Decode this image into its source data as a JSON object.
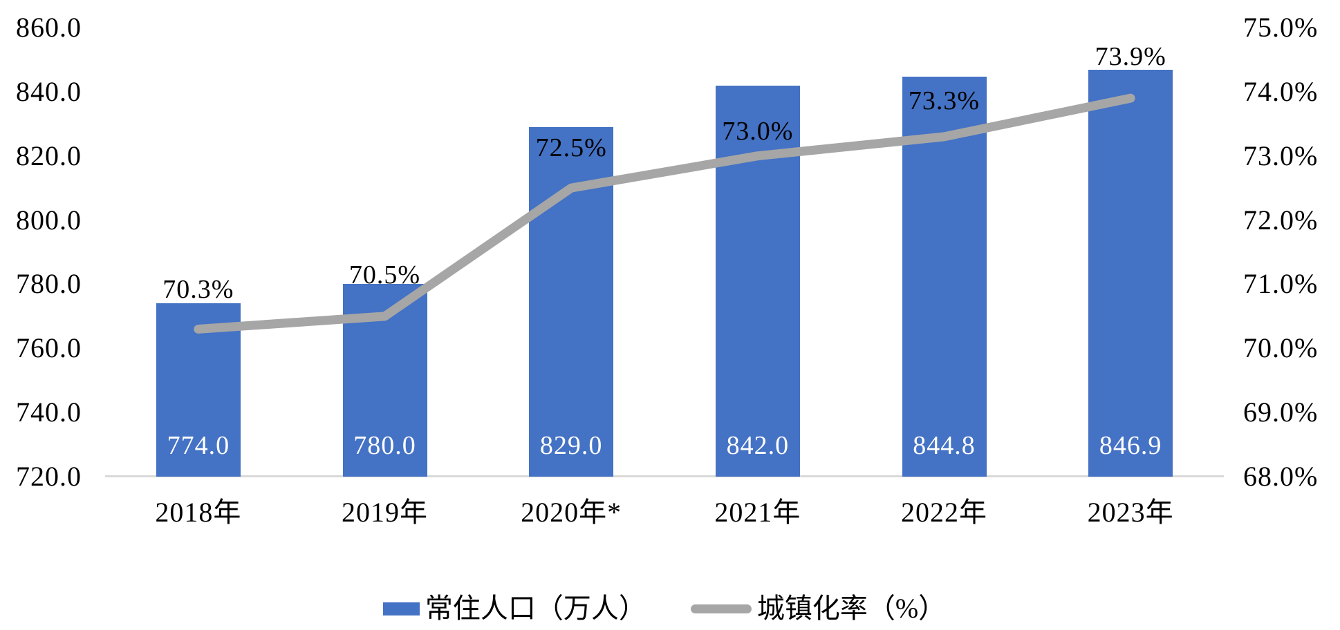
{
  "chart_data": {
    "type": "bar",
    "subtype": "combo-bar-line-dual-axis",
    "title": "",
    "categories": [
      "2018年",
      "2019年",
      "2020年*",
      "2021年",
      "2022年",
      "2023年"
    ],
    "series": [
      {
        "name": "常住人口（万人）",
        "type": "bar",
        "axis": "left",
        "values": [
          774.0,
          780.0,
          829.0,
          842.0,
          844.8,
          846.9
        ],
        "data_labels": [
          "774.0",
          "780.0",
          "829.0",
          "842.0",
          "844.8",
          "846.9"
        ],
        "color": "#4472C4",
        "label_color": "#FFFFFF",
        "label_position": "inside-base"
      },
      {
        "name": "城镇化率（%）",
        "type": "line",
        "axis": "right",
        "values": [
          70.3,
          70.5,
          72.5,
          73.0,
          73.3,
          73.9
        ],
        "data_labels": [
          "70.3%",
          "70.5%",
          "72.5%",
          "73.0%",
          "73.3%",
          "73.9%"
        ],
        "color": "#A6A6A6",
        "label_color": "#000000",
        "label_position": "above"
      }
    ],
    "left_axis": {
      "min": 720,
      "max": 860,
      "step": 20,
      "tick_labels": [
        "860.0",
        "840.0",
        "820.0",
        "800.0",
        "780.0",
        "760.0",
        "740.0",
        "720.0"
      ]
    },
    "right_axis": {
      "min": 68,
      "max": 75,
      "step": 1,
      "tick_labels": [
        "75.0%",
        "74.0%",
        "73.0%",
        "72.0%",
        "71.0%",
        "70.0%",
        "69.0%",
        "68.0%"
      ]
    },
    "grid": "off",
    "legend_position": "bottom",
    "axis_line_color": "#D9D9D9",
    "background_color": "#FFFFFF"
  }
}
